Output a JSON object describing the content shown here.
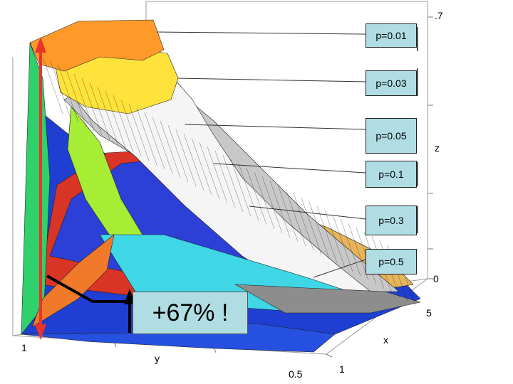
{
  "chart_data": {
    "type": "surface",
    "title": "",
    "axes": {
      "x": {
        "label": "x",
        "ticks": [
          "1",
          "5"
        ]
      },
      "y": {
        "label": "y",
        "ticks": [
          "1",
          "0.5"
        ]
      },
      "z": {
        "label": "z",
        "ticks": [
          "0",
          ".7"
        ]
      }
    },
    "series": [
      {
        "name": "p=0.01",
        "color": "#ffa033"
      },
      {
        "name": "p=0.03",
        "color": "#ffe23a"
      },
      {
        "name": "p=0.05",
        "color": "#ffffff"
      },
      {
        "name": "p=0.1",
        "color": "#c9c9c9"
      },
      {
        "name": "p=0.3",
        "color": "#e63a2a"
      },
      {
        "name": "p=0.5",
        "color": "#2a3ae0"
      }
    ],
    "annotation": {
      "text": "+67% !"
    }
  },
  "colors": {
    "label_bg": "#b0dde4",
    "arrow": "#e8342a"
  }
}
